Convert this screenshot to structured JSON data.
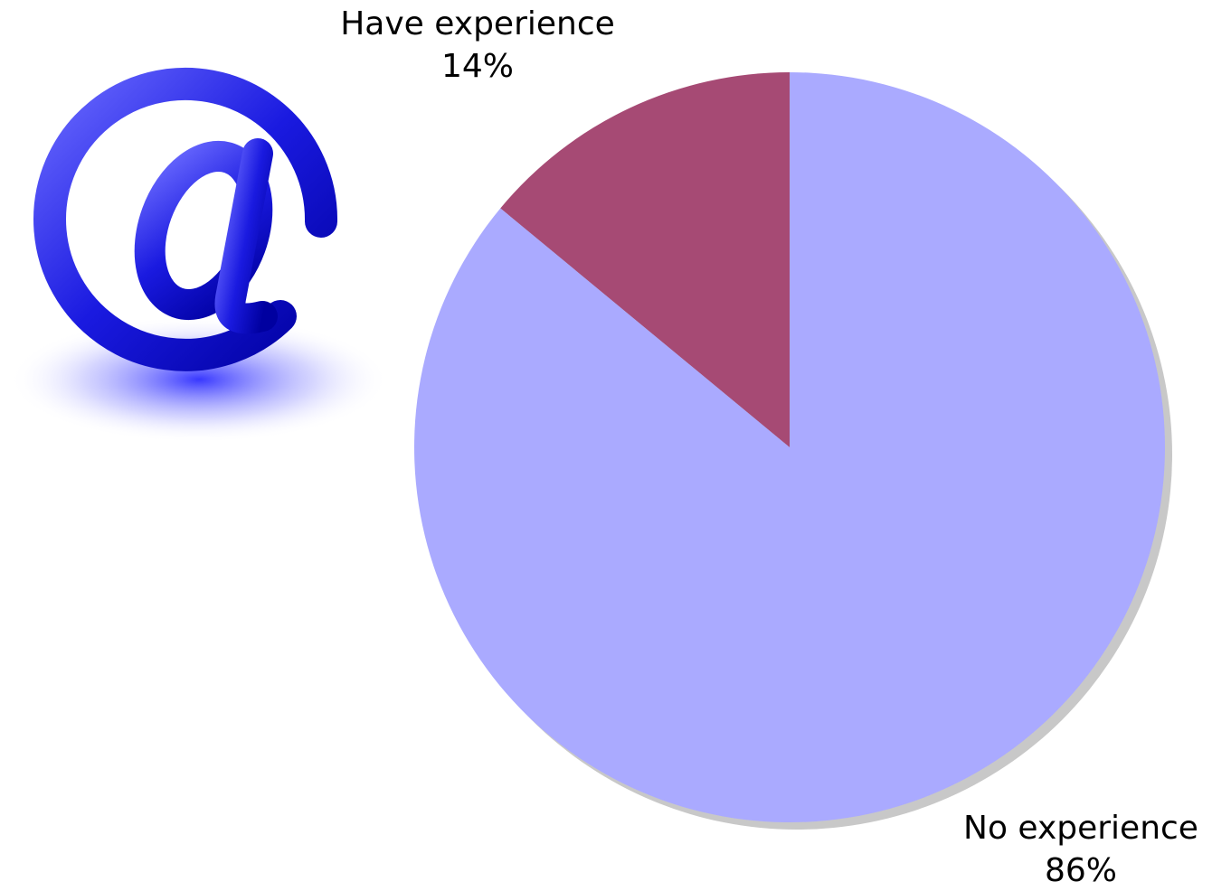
{
  "chart_data": {
    "type": "pie",
    "categories": [
      "Have experience",
      "No experience"
    ],
    "values": [
      14,
      86
    ],
    "value_labels": [
      "14%",
      "86%"
    ],
    "colors": [
      "#a64a74",
      "#aaaaff"
    ]
  }
}
